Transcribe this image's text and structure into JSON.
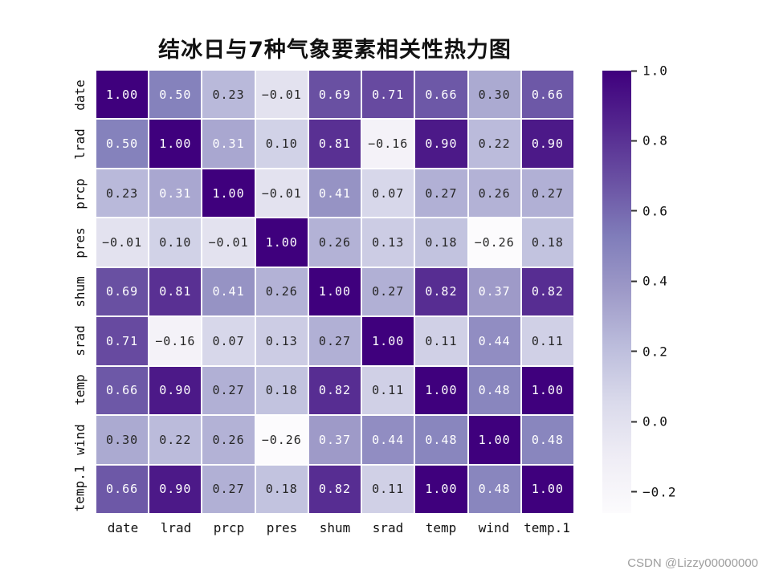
{
  "chart_data": {
    "type": "heatmap",
    "title": "结冰日与7种气象要素相关性热力图",
    "categories": [
      "date",
      "lrad",
      "prcp",
      "pres",
      "shum",
      "srad",
      "temp",
      "wind",
      "temp.1"
    ],
    "matrix": [
      [
        1.0,
        0.5,
        0.23,
        -0.01,
        0.69,
        0.71,
        0.66,
        0.3,
        0.66
      ],
      [
        0.5,
        1.0,
        0.31,
        0.1,
        0.81,
        -0.16,
        0.9,
        0.22,
        0.9
      ],
      [
        0.23,
        0.31,
        1.0,
        -0.01,
        0.41,
        0.07,
        0.27,
        0.26,
        0.27
      ],
      [
        -0.01,
        0.1,
        -0.01,
        1.0,
        0.26,
        0.13,
        0.18,
        -0.26,
        0.18
      ],
      [
        0.69,
        0.81,
        0.41,
        0.26,
        1.0,
        0.27,
        0.82,
        0.37,
        0.82
      ],
      [
        0.71,
        -0.16,
        0.07,
        0.13,
        0.27,
        1.0,
        0.11,
        0.44,
        0.11
      ],
      [
        0.66,
        0.9,
        0.27,
        0.18,
        0.82,
        0.11,
        1.0,
        0.48,
        1.0
      ],
      [
        0.3,
        0.22,
        0.26,
        -0.26,
        0.37,
        0.44,
        0.48,
        1.0,
        0.48
      ],
      [
        0.66,
        0.9,
        0.27,
        0.18,
        0.82,
        0.11,
        1.0,
        0.48,
        1.0
      ]
    ],
    "vmin": -0.26,
    "vmax": 1.0,
    "colormap": "Purples",
    "grid": false,
    "legend_position": "right-colorbar",
    "colorbar_ticks": [
      "1.0",
      "0.8",
      "0.6",
      "0.4",
      "0.2",
      "0.0",
      "-0.2"
    ],
    "colorbar_tick_values": [
      1.0,
      0.8,
      0.6,
      0.4,
      0.2,
      0.0,
      -0.2
    ],
    "xlabel": "",
    "ylabel": ""
  },
  "colors": {
    "heatmap_dark": "#3f007d",
    "heatmap_light": "#fcfbfd",
    "cell_text_light": "#ffffff",
    "cell_text_dark": "#262626"
  },
  "watermark": "CSDN @Lizzy00000000"
}
